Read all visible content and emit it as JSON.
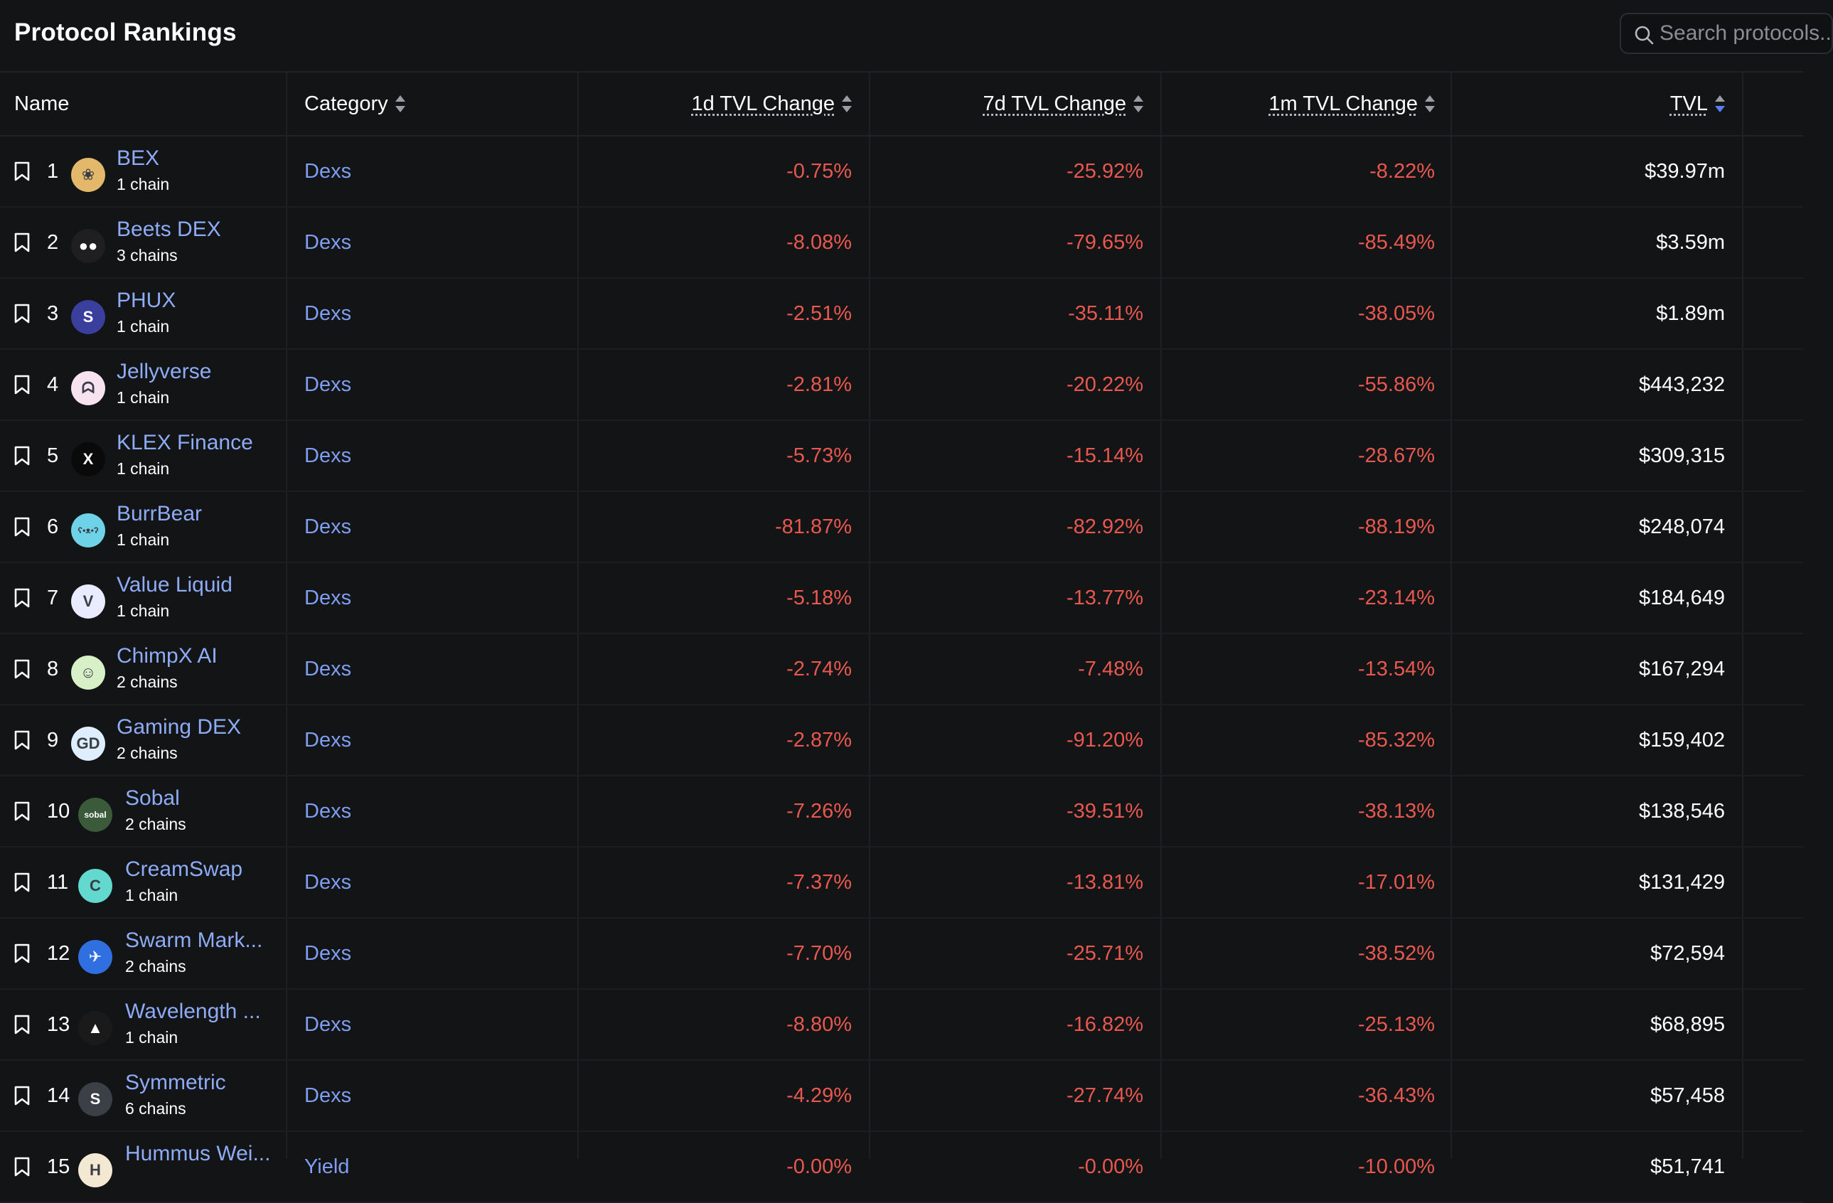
{
  "header": {
    "title": "Protocol Rankings",
    "search_placeholder": "Search protocols..."
  },
  "columns": {
    "name": "Name",
    "category": "Category",
    "change_1d": "1d TVL Change",
    "change_7d": "7d TVL Change",
    "change_1m": "1m TVL Change",
    "tvl": "TVL"
  },
  "rows": [
    {
      "rank": "1",
      "name": "BEX",
      "chains": "1 chain",
      "category": "Dexs",
      "change_1d": "-0.75%",
      "change_7d": "-25.92%",
      "change_1m": "-8.22%",
      "tvl": "$39.97m",
      "logo_color": "#e3b86a",
      "logo_text": "❀"
    },
    {
      "rank": "2",
      "name": "Beets DEX",
      "chains": "3 chains",
      "category": "Dexs",
      "change_1d": "-8.08%",
      "change_7d": "-79.65%",
      "change_1m": "-85.49%",
      "tvl": "$3.59m",
      "logo_color": "#1f1f22",
      "logo_text": "●●"
    },
    {
      "rank": "3",
      "name": "PHUX",
      "chains": "1 chain",
      "category": "Dexs",
      "change_1d": "-2.51%",
      "change_7d": "-35.11%",
      "change_1m": "-38.05%",
      "tvl": "$1.89m",
      "logo_color": "#3a3f9e",
      "logo_text": "S"
    },
    {
      "rank": "4",
      "name": "Jellyverse",
      "chains": "1 chain",
      "category": "Dexs",
      "change_1d": "-2.81%",
      "change_7d": "-20.22%",
      "change_1m": "-55.86%",
      "tvl": "$443,232",
      "logo_color": "#f6e3ef",
      "logo_text": "ᗣ"
    },
    {
      "rank": "5",
      "name": "KLEX Finance",
      "chains": "1 chain",
      "category": "Dexs",
      "change_1d": "-5.73%",
      "change_7d": "-15.14%",
      "change_1m": "-28.67%",
      "tvl": "$309,315",
      "logo_color": "#0a0a0a",
      "logo_text": "X"
    },
    {
      "rank": "6",
      "name": "BurrBear",
      "chains": "1 chain",
      "category": "Dexs",
      "change_1d": "-81.87%",
      "change_7d": "-82.92%",
      "change_1m": "-88.19%",
      "tvl": "$248,074",
      "logo_color": "#6fd3e8",
      "logo_text": "ʕ•ᴥ•ʔ"
    },
    {
      "rank": "7",
      "name": "Value Liquid",
      "chains": "1 chain",
      "category": "Dexs",
      "change_1d": "-5.18%",
      "change_7d": "-13.77%",
      "change_1m": "-23.14%",
      "tvl": "$184,649",
      "logo_color": "#e9ecff",
      "logo_text": "V"
    },
    {
      "rank": "8",
      "name": "ChimpX AI",
      "chains": "2 chains",
      "category": "Dexs",
      "change_1d": "-2.74%",
      "change_7d": "-7.48%",
      "change_1m": "-13.54%",
      "tvl": "$167,294",
      "logo_color": "#d7f0c8",
      "logo_text": "☺"
    },
    {
      "rank": "9",
      "name": "Gaming DEX",
      "chains": "2 chains",
      "category": "Dexs",
      "change_1d": "-2.87%",
      "change_7d": "-91.20%",
      "change_1m": "-85.32%",
      "tvl": "$159,402",
      "logo_color": "#dfeefe",
      "logo_text": "GD"
    },
    {
      "rank": "10",
      "name": "Sobal",
      "chains": "2 chains",
      "category": "Dexs",
      "change_1d": "-7.26%",
      "change_7d": "-39.51%",
      "change_1m": "-38.13%",
      "tvl": "$138,546",
      "logo_color": "#3a5a3a",
      "logo_text": "sobal"
    },
    {
      "rank": "11",
      "name": "CreamSwap",
      "chains": "1 chain",
      "category": "Dexs",
      "change_1d": "-7.37%",
      "change_7d": "-13.81%",
      "change_1m": "-17.01%",
      "tvl": "$131,429",
      "logo_color": "#63d8cf",
      "logo_text": "C"
    },
    {
      "rank": "12",
      "name": "Swarm Mark...",
      "chains": "2 chains",
      "category": "Dexs",
      "change_1d": "-7.70%",
      "change_7d": "-25.71%",
      "change_1m": "-38.52%",
      "tvl": "$72,594",
      "logo_color": "#2f6fe0",
      "logo_text": "✈"
    },
    {
      "rank": "13",
      "name": "Wavelength ...",
      "chains": "1 chain",
      "category": "Dexs",
      "change_1d": "-8.80%",
      "change_7d": "-16.82%",
      "change_1m": "-25.13%",
      "tvl": "$68,895",
      "logo_color": "#1a1a1a",
      "logo_text": "▲"
    },
    {
      "rank": "14",
      "name": "Symmetric",
      "chains": "6 chains",
      "category": "Dexs",
      "change_1d": "-4.29%",
      "change_7d": "-27.74%",
      "change_1m": "-36.43%",
      "tvl": "$57,458",
      "logo_color": "#3b3f46",
      "logo_text": "S"
    },
    {
      "rank": "15",
      "name": "Hummus Wei...",
      "chains": "",
      "category": "Yield",
      "change_1d": "-0.00%",
      "change_7d": "-0.00%",
      "change_1m": "-10.00%",
      "tvl": "$51,741",
      "logo_color": "#f3e8d2",
      "logo_text": "H"
    }
  ]
}
